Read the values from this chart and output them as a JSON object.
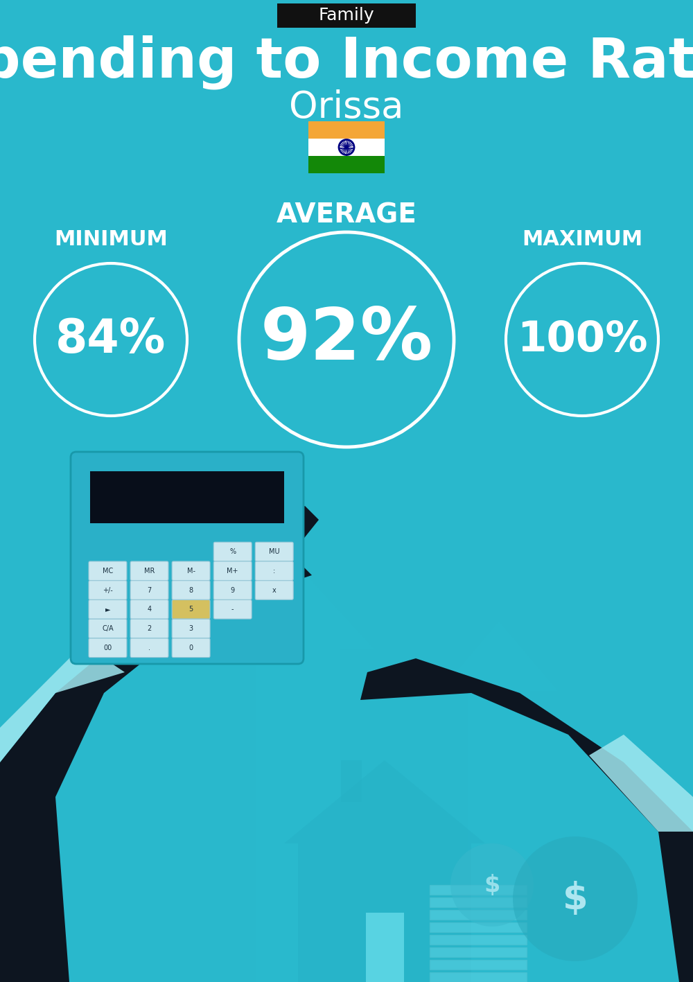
{
  "title": "Spending to Income Ratio",
  "subtitle": "Orissa",
  "category_label": "Family",
  "bg_color": "#29b8cc",
  "text_color": "#ffffff",
  "black_box_color": "#111111",
  "min_label": "MINIMUM",
  "avg_label": "AVERAGE",
  "max_label": "MAXIMUM",
  "min_value": "84%",
  "avg_value": "92%",
  "max_value": "100%",
  "circle_color": "white",
  "flag_saffron": "#F4A636",
  "flag_white": "#FFFFFF",
  "flag_green": "#138808",
  "flag_navy": "#000080",
  "fig_width": 10.0,
  "fig_height": 14.17,
  "dpi": 100
}
